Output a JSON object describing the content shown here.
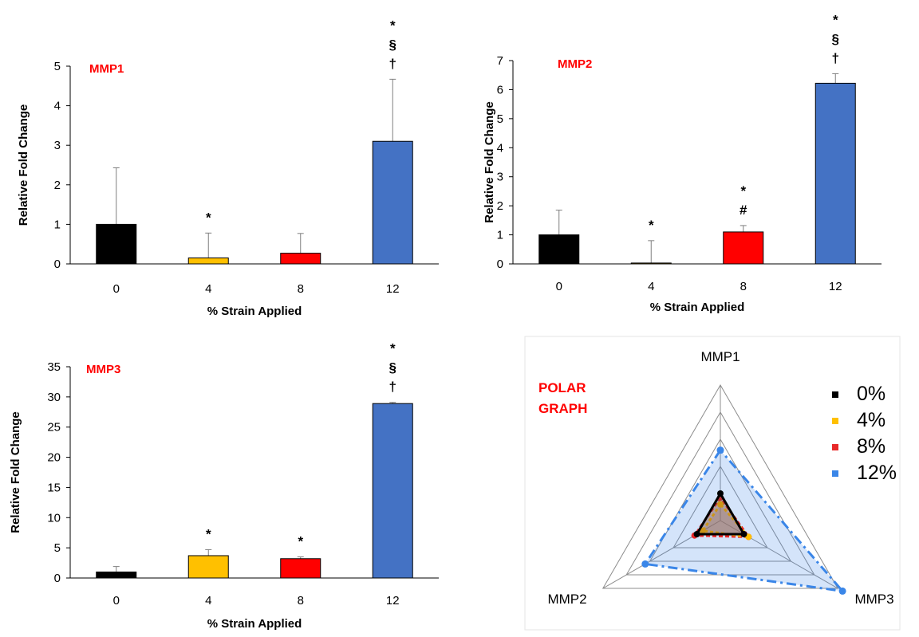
{
  "chart_data": [
    {
      "type": "bar",
      "title": "MMP1",
      "xlabel": "% Strain Applied",
      "ylabel": "Relative Fold Change",
      "categories": [
        "0",
        "4",
        "8",
        "12"
      ],
      "values": [
        1.0,
        0.15,
        0.27,
        3.1
      ],
      "errors": [
        1.43,
        0.63,
        0.5,
        1.57
      ],
      "ylim": [
        0,
        5
      ],
      "yticks": [
        "0",
        "1",
        "2",
        "3",
        "4",
        "5"
      ],
      "bar_colors": [
        "#000000",
        "#FFC000",
        "#FF0000",
        "#4472C4"
      ],
      "annotations": [
        [],
        [
          "*"
        ],
        [],
        [
          "*",
          "§",
          "†"
        ]
      ],
      "title_color": "#FF0000",
      "grid": false
    },
    {
      "type": "bar",
      "title": "MMP2",
      "xlabel": "% Strain Applied",
      "ylabel": "Relative Fold Change",
      "categories": [
        "0",
        "4",
        "8",
        "12"
      ],
      "values": [
        1.0,
        0.03,
        1.1,
        6.22
      ],
      "errors": [
        0.85,
        0.77,
        0.22,
        0.33
      ],
      "ylim": [
        0,
        7
      ],
      "yticks": [
        "0",
        "1",
        "2",
        "3",
        "4",
        "5",
        "6",
        "7"
      ],
      "bar_colors": [
        "#000000",
        "#FFC000",
        "#FF0000",
        "#4472C4"
      ],
      "annotations": [
        [],
        [
          "*"
        ],
        [
          "*",
          "#"
        ],
        [
          "*",
          "§",
          "†"
        ]
      ],
      "title_color": "#FF0000",
      "grid": false
    },
    {
      "type": "bar",
      "title": "MMP3",
      "xlabel": "% Strain Applied",
      "ylabel": "Relative Fold Change",
      "categories": [
        "0",
        "4",
        "8",
        "12"
      ],
      "values": [
        1.0,
        3.7,
        3.2,
        28.9
      ],
      "errors": [
        0.9,
        1.0,
        0.3,
        0.2
      ],
      "ylim": [
        0,
        35
      ],
      "yticks": [
        "0",
        "5",
        "10",
        "15",
        "20",
        "25",
        "30",
        "35"
      ],
      "bar_colors": [
        "#000000",
        "#FFC000",
        "#FF0000",
        "#4472C4"
      ],
      "annotations": [
        [],
        [
          "*"
        ],
        [
          "*"
        ],
        [
          "*",
          "§",
          "†"
        ]
      ],
      "title_color": "#FF0000",
      "grid": false
    },
    {
      "type": "radar",
      "title": "POLAR GRAPH",
      "title_lines": [
        "POLAR",
        "GRAPH"
      ],
      "axes": [
        "MMP1",
        "MMP2",
        "MMP3"
      ],
      "rings": 5,
      "series": [
        {
          "name": "0%",
          "color": "#000000",
          "values": [
            1.0,
            1.0,
            1.0
          ]
        },
        {
          "name": "4%",
          "color": "#FFC000",
          "values": [
            0.6,
            0.75,
            1.2
          ]
        },
        {
          "name": "8%",
          "color": "#E82828",
          "values": [
            0.85,
            1.1,
            1.2
          ]
        },
        {
          "name": "12%",
          "color": "#3A86E8",
          "values": [
            2.6,
            3.2,
            5.2
          ]
        }
      ],
      "legend_position": "right",
      "title_color": "#FF0000"
    }
  ]
}
